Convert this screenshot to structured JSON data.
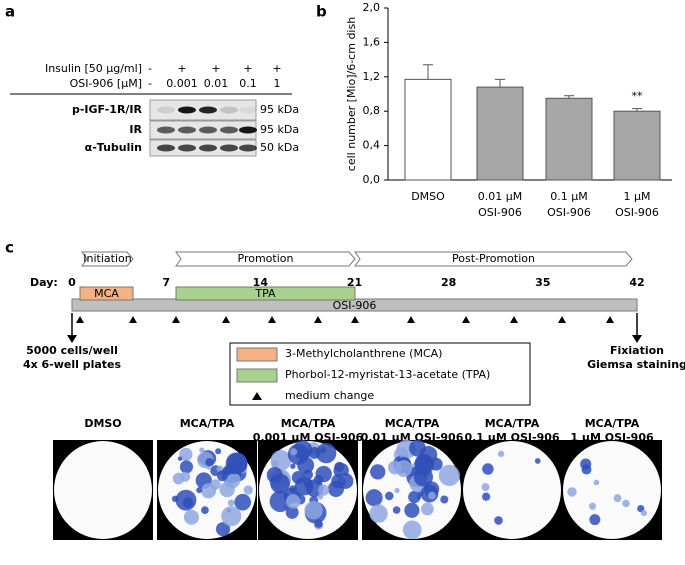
{
  "panel_a": {
    "label": "a",
    "treatments": [
      {
        "name": "Insulin [50 µg/ml]",
        "levels": [
          "-",
          "+",
          "+",
          "+",
          "+"
        ]
      },
      {
        "name": "OSI-906 [µM]",
        "levels": [
          "-",
          "0.001",
          "0.01",
          "0.1",
          "1"
        ]
      }
    ],
    "bands": [
      {
        "name": "p-IGF-1R/IR",
        "size": "95 kDa"
      },
      {
        "name": "IR",
        "size": "95 kDa"
      },
      {
        "name": "α-Tubulin",
        "size": "50 kDa"
      }
    ]
  },
  "chart_data": {
    "type": "bar",
    "label": "b",
    "ylabel": "cell number [Mio]/6-cm dish",
    "categories": [
      [
        "DMSO"
      ],
      [
        "0.01 µM",
        "OSI-906"
      ],
      [
        "0.1 µM",
        "OSI-906"
      ],
      [
        "1 µM",
        "OSI-906"
      ]
    ],
    "values": [
      1.17,
      1.08,
      0.95,
      0.8
    ],
    "error": [
      0.17,
      0.09,
      0.03,
      0.03
    ],
    "colors": [
      "#ffffff",
      "#a6a6a6",
      "#a6a6a6",
      "#a6a6a6"
    ],
    "value_annotations": [
      null,
      null,
      null,
      "**"
    ],
    "ylim": [
      0,
      2
    ],
    "yticks": [
      {
        "value": 0,
        "label": "0,0"
      },
      {
        "value": 0.4,
        "label": "0,4"
      },
      {
        "value": 0.8,
        "label": "0,8"
      },
      {
        "value": 1.2,
        "label": "1,2"
      },
      {
        "value": 1.6,
        "label": "1,6"
      },
      {
        "value": 2,
        "label": "2,0"
      }
    ]
  },
  "panel_c": {
    "label": "c",
    "phases": [
      "Initiation",
      "Promotion",
      "Post-Promotion"
    ],
    "day_label": "Day:",
    "days": [
      0,
      7,
      14,
      21,
      28,
      35,
      42
    ],
    "treatments": [
      {
        "name": "MCA",
        "color": "#f4b183"
      },
      {
        "name": "TPA",
        "color": "#a9d18e"
      },
      {
        "name": "OSI-906",
        "color": "#bfbfbf"
      }
    ],
    "start_note": [
      "5000 cells/well",
      "4x 6-well plates"
    ],
    "end_note": [
      "Fixiation",
      "Giemsa staining"
    ],
    "legend": [
      "3-Methylcholanthrene (MCA)",
      "Phorbol-12-myristat-13-acetate (TPA)",
      "medium change"
    ],
    "plates": [
      [
        "DMSO"
      ],
      [
        "MCA/TPA"
      ],
      [
        "MCA/TPA",
        "0.001 µM OSI-906"
      ],
      [
        "MCA/TPA",
        "0.01 µM OSI-906"
      ],
      [
        "MCA/TPA",
        "0.1 µM OSI-906"
      ],
      [
        "MCA/TPA",
        "1 µM OSI-906"
      ]
    ]
  }
}
